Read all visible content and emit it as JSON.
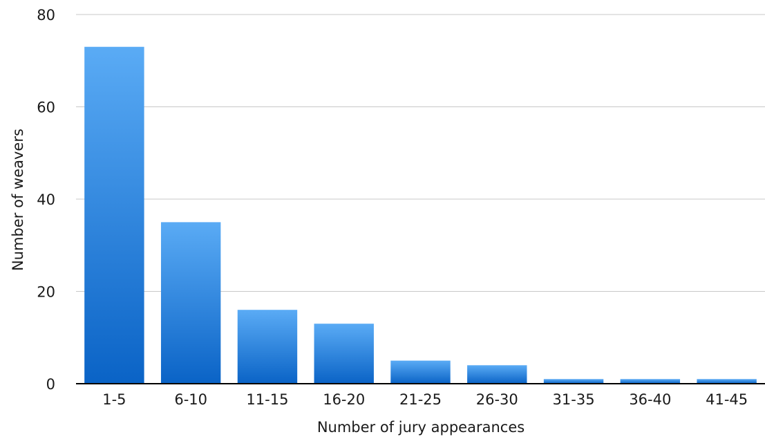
{
  "chart_data": {
    "type": "bar",
    "categories": [
      "1-5",
      "6-10",
      "11-15",
      "16-20",
      "21-25",
      "26-30",
      "31-35",
      "36-40",
      "41-45"
    ],
    "values": [
      73,
      35,
      16,
      13,
      5,
      4,
      1,
      1,
      1
    ],
    "xlabel": "Number of jury appearances",
    "ylabel": "Number of weavers",
    "ylim": [
      0,
      80
    ],
    "yticks": [
      0,
      20,
      40,
      60,
      80
    ],
    "grid": true,
    "legend": "none",
    "colors": {
      "bar_top": "#5aabf5",
      "bar_bottom": "#0a63c6",
      "grid": "#c8c8c8",
      "axis": "#000000",
      "text": "#1a1a1a"
    }
  }
}
